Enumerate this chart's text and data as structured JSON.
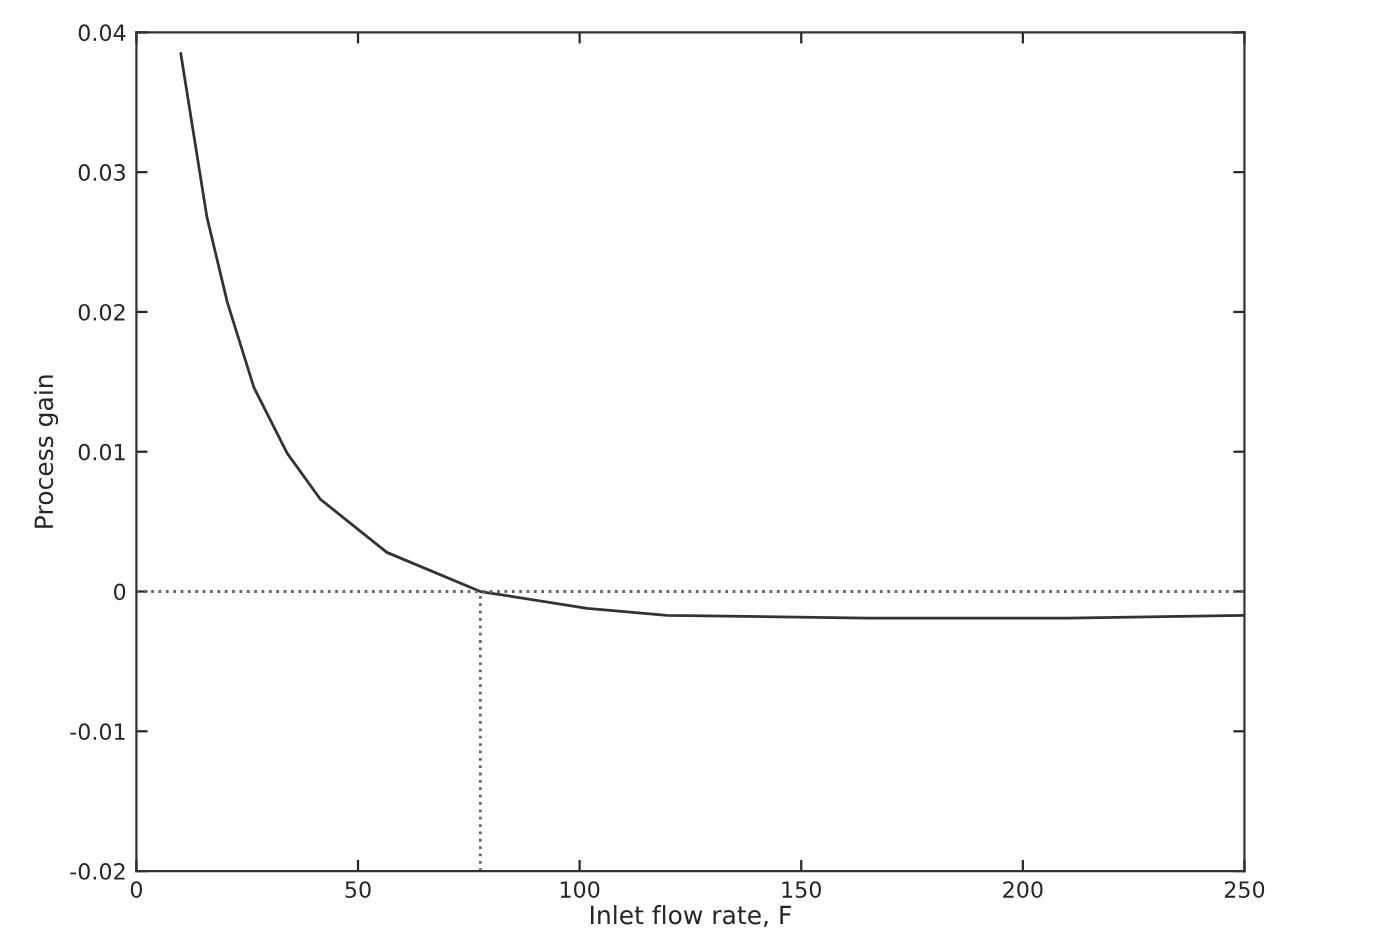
{
  "chart_data": {
    "type": "line",
    "xlabel": "Inlet flow rate, F",
    "ylabel": "Process gain",
    "xlim": [
      0,
      250
    ],
    "ylim": [
      -0.02,
      0.04
    ],
    "xticks": [
      0,
      50,
      100,
      150,
      200,
      250
    ],
    "yticks": [
      -0.02,
      -0.01,
      0,
      0.01,
      0.02,
      0.03,
      0.04
    ],
    "grid": false,
    "legend": false,
    "series": [
      {
        "color": "#333333",
        "line_style": "solid",
        "x": [
          10,
          15.9,
          20.5,
          26.5,
          34,
          41.5,
          56.5,
          77.6,
          101.7,
          119.7,
          164.9,
          210,
          250
        ],
        "values": [
          0.0385,
          0.0268,
          0.0207,
          0.0146,
          0.0099,
          0.0066,
          0.0028,
          0,
          -0.0012,
          -0.0017,
          -0.0019,
          -0.0019,
          -0.0017
        ]
      },
      {
        "color": "#666666",
        "line_style": "dotted",
        "x": [
          77.6,
          77.6
        ],
        "values": [
          -0.02,
          0
        ]
      }
    ],
    "ref_lines": [
      {
        "axis": "y",
        "value": 0,
        "color": "#666666",
        "line_style": "dotted"
      }
    ]
  }
}
